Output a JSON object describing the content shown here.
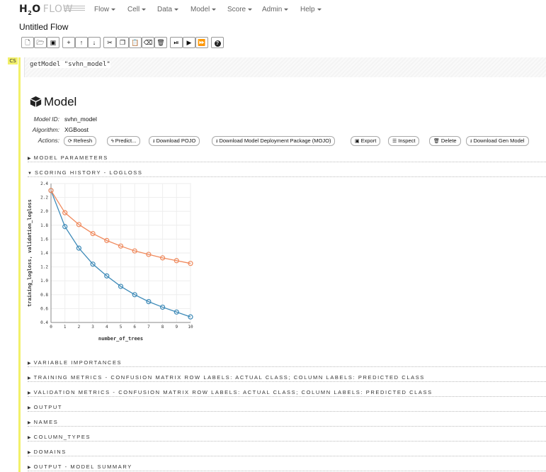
{
  "app": {
    "logo_h2o": "H₂O",
    "logo_flow": "FLOW"
  },
  "menu": [
    "Flow",
    "Cell",
    "Data",
    "Model",
    "Score",
    "Admin",
    "Help"
  ],
  "flow_title": "Untitled Flow",
  "toolbar_icons": [
    "new-file-icon",
    "open-folder-icon",
    "save-icon",
    "insert-cell-icon",
    "move-up-icon",
    "move-down-icon",
    "cut-icon",
    "copy-icon",
    "paste-icon",
    "clear-icon",
    "delete-icon",
    "run-cell-icon",
    "run-icon",
    "run-all-icon",
    "help-icon"
  ],
  "cell": {
    "type_marker": "CS",
    "code": "getModel \"svhn_model\""
  },
  "model": {
    "heading": "Model",
    "id_label": "Model ID:",
    "id_value": "svhn_model",
    "algo_label": "Algorithm:",
    "algo_value": "XGBoost",
    "actions_label": "Actions:",
    "actions": [
      "Refresh",
      "Predict...",
      "Download POJO",
      "Download Model Deployment Package (MOJO)",
      "Export",
      "Inspect",
      "Delete",
      "Download Gen Model"
    ]
  },
  "sections": {
    "model_parameters": "MODEL PARAMETERS",
    "scoring_history": "SCORING HISTORY - LOGLOSS",
    "variable_importances": "VARIABLE IMPORTANCES",
    "training_metrics": "TRAINING METRICS - CONFUSION MATRIX ROW LABELS: ACTUAL CLASS; COLUMN LABELS: PREDICTED CLASS",
    "validation_metrics": "VALIDATION METRICS - CONFUSION MATRIX ROW LABELS: ACTUAL CLASS; COLUMN LABELS: PREDICTED CLASS",
    "output": "OUTPUT",
    "names": "NAMES",
    "column_types": "COLUMN_TYPES",
    "domains": "DOMAINS",
    "output_model_summary": "OUTPUT - MODEL SUMMARY"
  },
  "chart_data": {
    "type": "line",
    "xlabel": "number_of_trees",
    "ylabel": "training_logloss, validation_logloss",
    "x": [
      0,
      1,
      2,
      3,
      4,
      5,
      6,
      7,
      8,
      9,
      10
    ],
    "xlim": [
      0,
      10
    ],
    "ylim": [
      0.4,
      2.4
    ],
    "yticks": [
      0.4,
      0.6,
      0.8,
      1.0,
      1.2,
      1.4,
      1.6,
      1.8,
      2.0,
      2.2,
      2.4
    ],
    "grid": true,
    "series": [
      {
        "values": [
          2.3,
          1.78,
          1.47,
          1.24,
          1.07,
          0.92,
          0.8,
          0.7,
          0.62,
          0.55,
          0.48
        ],
        "color": "#3d8ab8"
      },
      {
        "values": [
          2.3,
          1.98,
          1.81,
          1.68,
          1.58,
          1.5,
          1.43,
          1.38,
          1.33,
          1.29,
          1.25
        ],
        "color": "#f08a5d"
      }
    ]
  }
}
